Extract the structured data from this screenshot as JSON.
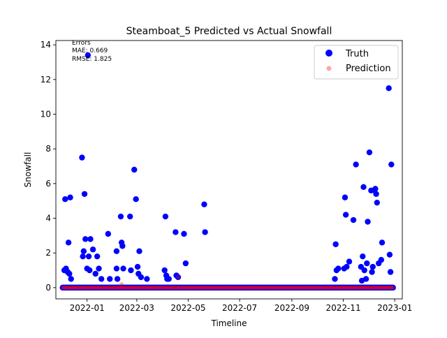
{
  "chart_data": {
    "type": "scatter",
    "title": "Steamboat_5 Predicted vs Actual Snowfall",
    "xlabel": "Timeline",
    "ylabel": "Snowfall",
    "x_axis_type": "date",
    "xlim": [
      "2021-11-25",
      "2023-01-10"
    ],
    "ylim": [
      -0.65,
      14.25
    ],
    "x_ticks": [
      "2022-01",
      "2022-03",
      "2022-05",
      "2022-07",
      "2022-09",
      "2022-11",
      "2023-01"
    ],
    "y_ticks": [
      "0",
      "2",
      "4",
      "6",
      "8",
      "10",
      "12",
      "14"
    ],
    "grid": false,
    "legend": {
      "placement": "upper-right",
      "entries": [
        "Truth",
        "Prediction"
      ]
    },
    "annotation": {
      "lines": [
        "Errors",
        "MAE: 0.669",
        "RMSE: 1.825"
      ],
      "placement": "top-left"
    },
    "series": [
      {
        "name": "Truth",
        "color": "#0000ff",
        "marker": "circle",
        "points": [
          [
            "2021-12-05",
            1.0
          ],
          [
            "2021-12-06",
            5.1
          ],
          [
            "2021-12-07",
            1.1
          ],
          [
            "2021-12-09",
            0.9
          ],
          [
            "2021-12-10",
            2.6
          ],
          [
            "2021-12-11",
            0.8
          ],
          [
            "2021-12-12",
            5.2
          ],
          [
            "2021-12-13",
            0.5
          ],
          [
            "2021-12-26",
            7.5
          ],
          [
            "2021-12-27",
            1.8
          ],
          [
            "2021-12-28",
            2.1
          ],
          [
            "2021-12-29",
            5.4
          ],
          [
            "2021-12-30",
            2.8
          ],
          [
            "2022-01-01",
            1.1
          ],
          [
            "2022-01-02",
            13.4
          ],
          [
            "2022-01-03",
            1.8
          ],
          [
            "2022-01-04",
            1.0
          ],
          [
            "2022-01-05",
            2.8
          ],
          [
            "2022-01-08",
            2.2
          ],
          [
            "2022-01-11",
            0.8
          ],
          [
            "2022-01-13",
            1.8
          ],
          [
            "2022-01-15",
            1.1
          ],
          [
            "2022-01-18",
            0.5
          ],
          [
            "2022-01-26",
            3.1
          ],
          [
            "2022-01-28",
            0.5
          ],
          [
            "2022-02-05",
            2.1
          ],
          [
            "2022-02-05",
            1.1
          ],
          [
            "2022-02-06",
            0.5
          ],
          [
            "2022-02-10",
            4.1
          ],
          [
            "2022-02-11",
            2.6
          ],
          [
            "2022-02-12",
            2.4
          ],
          [
            "2022-02-13",
            1.1
          ],
          [
            "2022-02-21",
            4.1
          ],
          [
            "2022-02-22",
            1.0
          ],
          [
            "2022-02-26",
            6.8
          ],
          [
            "2022-02-28",
            5.1
          ],
          [
            "2022-03-02",
            1.2
          ],
          [
            "2022-03-03",
            0.8
          ],
          [
            "2022-03-04",
            2.1
          ],
          [
            "2022-03-06",
            0.6
          ],
          [
            "2022-03-13",
            0.5
          ],
          [
            "2022-04-03",
            1.0
          ],
          [
            "2022-04-04",
            4.1
          ],
          [
            "2022-04-05",
            0.7
          ],
          [
            "2022-04-06",
            0.5
          ],
          [
            "2022-04-08",
            0.5
          ],
          [
            "2022-04-16",
            3.2
          ],
          [
            "2022-04-17",
            0.7
          ],
          [
            "2022-04-19",
            0.6
          ],
          [
            "2022-04-26",
            3.1
          ],
          [
            "2022-04-28",
            1.4
          ],
          [
            "2022-05-20",
            4.8
          ],
          [
            "2022-05-21",
            3.2
          ],
          [
            "2022-10-22",
            0.5
          ],
          [
            "2022-10-23",
            2.5
          ],
          [
            "2022-10-24",
            1.0
          ],
          [
            "2022-10-26",
            1.1
          ],
          [
            "2022-11-02",
            1.1
          ],
          [
            "2022-11-03",
            5.2
          ],
          [
            "2022-11-04",
            4.2
          ],
          [
            "2022-11-05",
            1.2
          ],
          [
            "2022-11-08",
            1.5
          ],
          [
            "2022-11-13",
            3.9
          ],
          [
            "2022-11-16",
            7.1
          ],
          [
            "2022-11-22",
            1.2
          ],
          [
            "2022-11-23",
            0.4
          ],
          [
            "2022-11-24",
            1.8
          ],
          [
            "2022-11-25",
            5.8
          ],
          [
            "2022-11-26",
            1.0
          ],
          [
            "2022-11-28",
            0.5
          ],
          [
            "2022-11-29",
            1.4
          ],
          [
            "2022-11-30",
            3.8
          ],
          [
            "2022-12-02",
            7.8
          ],
          [
            "2022-12-04",
            5.6
          ],
          [
            "2022-12-05",
            0.9
          ],
          [
            "2022-12-06",
            1.2
          ],
          [
            "2022-12-08",
            5.6
          ],
          [
            "2022-12-09",
            5.7
          ],
          [
            "2022-12-10",
            5.4
          ],
          [
            "2022-12-11",
            4.9
          ],
          [
            "2022-12-13",
            1.4
          ],
          [
            "2022-12-16",
            1.6
          ],
          [
            "2022-12-17",
            2.6
          ],
          [
            "2022-12-25",
            11.5
          ],
          [
            "2022-12-26",
            1.9
          ],
          [
            "2022-12-27",
            0.9
          ],
          [
            "2022-12-28",
            7.1
          ]
        ]
      },
      {
        "name": "Prediction",
        "color": "#ff0000",
        "marker": "circle",
        "points": [
          [
            "2022-02-11",
            0.2
          ],
          [
            "2022-04-19",
            0.6
          ]
        ]
      }
    ],
    "zero_band": {
      "series": [
        "Truth",
        "Prediction"
      ],
      "start": "2021-12-03",
      "end": "2022-12-30",
      "y": 0
    }
  }
}
